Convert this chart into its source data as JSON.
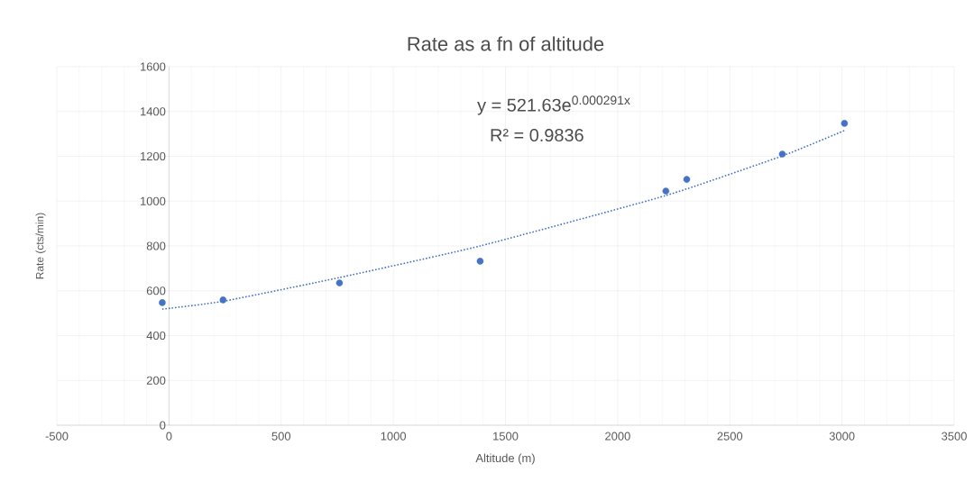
{
  "chart_data": {
    "type": "scatter",
    "title": "Rate as a fn of altitude",
    "xlabel": "Altitude (m)",
    "ylabel": "Rate (cts/min)",
    "xlim": [
      -500,
      3500
    ],
    "xticks": [
      -500,
      0,
      500,
      1000,
      1500,
      2000,
      2500,
      3000,
      3500
    ],
    "ylim": [
      0,
      1600
    ],
    "yticks": [
      0,
      200,
      400,
      600,
      800,
      1000,
      1200,
      1400,
      1600
    ],
    "grid": true,
    "marker": "circle",
    "series": [
      {
        "color": "#4472c4",
        "x": [
          -30,
          241,
          760,
          1387,
          2215,
          2308,
          2734,
          3011
        ],
        "values": [
          547,
          559,
          635,
          732,
          1045,
          1097,
          1210,
          1347
        ]
      },
      {
        "type": "line",
        "color": "#4472c4",
        "line_style": "dotted",
        "marker": "none",
        "x": [
          -30,
          241,
          760,
          1387,
          2215,
          2734,
          3011
        ],
        "values": [
          518,
          553,
          659,
          800,
          1025,
          1202,
          1315
        ]
      }
    ],
    "annotations": [
      "y = 521.63e$^{0.000291x}$",
      "R² = 0.9836"
    ]
  }
}
